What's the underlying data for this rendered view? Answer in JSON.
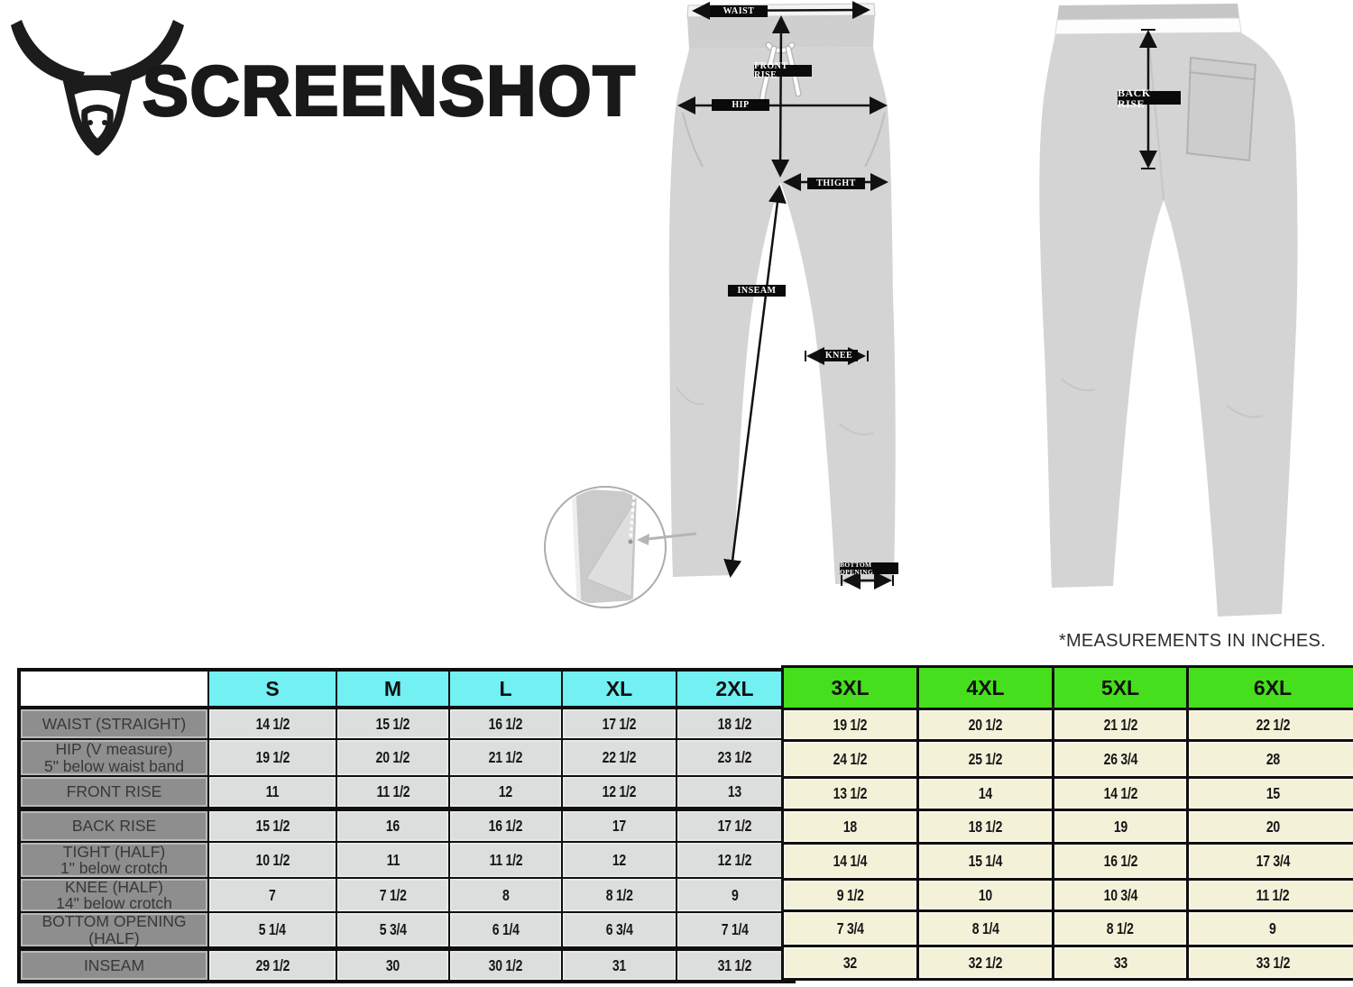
{
  "logo": {
    "brand": "SCREENSHOT",
    "icon": "bull-icon"
  },
  "note": "*MEASUREMENTS IN INCHES.",
  "diagram": {
    "labels": {
      "waist": "WAIST",
      "front_rise": "FRONT RISE",
      "hip": "HIP",
      "thigh": "THIGHT",
      "inseam": "INSEAM",
      "knee": "KNEE",
      "bottom_opening": "BOTTOM OPENING",
      "back_rise": "BACK RISE"
    }
  },
  "chart_data": {
    "type": "table",
    "units": "inches",
    "columns": [
      "S",
      "M",
      "L",
      "XL",
      "2XL",
      "3XL",
      "4XL",
      "5XL",
      "6XL"
    ],
    "rows": [
      {
        "label": "WAIST (STRAIGHT)",
        "sublabel": "",
        "values": [
          "14 1/2",
          "15 1/2",
          "16 1/2",
          "17 1/2",
          "18 1/2",
          "19 1/2",
          "20 1/2",
          "21 1/2",
          "22 1/2"
        ]
      },
      {
        "label": "HIP (V measure)",
        "sublabel": "5\" below waist band",
        "values": [
          "19 1/2",
          "20 1/2",
          "21 1/2",
          "22 1/2",
          "23 1/2",
          "24 1/2",
          "25 1/2",
          "26 3/4",
          "28"
        ]
      },
      {
        "label": "FRONT RISE",
        "sublabel": "",
        "values": [
          "11",
          "11 1/2",
          "12",
          "12 1/2",
          "13",
          "13 1/2",
          "14",
          "14 1/2",
          "15"
        ]
      },
      {
        "label": "BACK RISE",
        "sublabel": "",
        "values": [
          "15 1/2",
          "16",
          "16 1/2",
          "17",
          "17 1/2",
          "18",
          "18 1/2",
          "19",
          "20"
        ]
      },
      {
        "label": "TIGHT (HALF)",
        "sublabel": "1\" below crotch",
        "values": [
          "10 1/2",
          "11",
          "11 1/2",
          "12",
          "12 1/2",
          "14 1/4",
          "15 1/4",
          "16 1/2",
          "17 3/4"
        ]
      },
      {
        "label": "KNEE (HALF)",
        "sublabel": "14\" below crotch",
        "values": [
          "7",
          "7 1/2",
          "8",
          "8 1/2",
          "9",
          "9 1/2",
          "10",
          "10 3/4",
          "11 1/2"
        ]
      },
      {
        "label": "BOTTOM OPENING (HALF)",
        "sublabel": "",
        "values": [
          "5 1/4",
          "5 3/4",
          "6 1/4",
          "6 3/4",
          "7 1/4",
          "7 3/4",
          "8 1/4",
          "8 1/2",
          "9"
        ]
      },
      {
        "label": "INSEAM",
        "sublabel": "",
        "values": [
          "29 1/2",
          "30",
          "30 1/2",
          "31",
          "31 1/2",
          "32",
          "32 1/2",
          "33",
          "33 1/2"
        ]
      }
    ]
  },
  "colors": {
    "cyan_header": "#72f0f2",
    "green_header": "#46df1d",
    "row_label_bg": "#8e8e8e",
    "left_cells_bg": "#dbdedc",
    "right_cells_bg": "#f3f1d8",
    "pants_gray": "#d4d4d4"
  }
}
